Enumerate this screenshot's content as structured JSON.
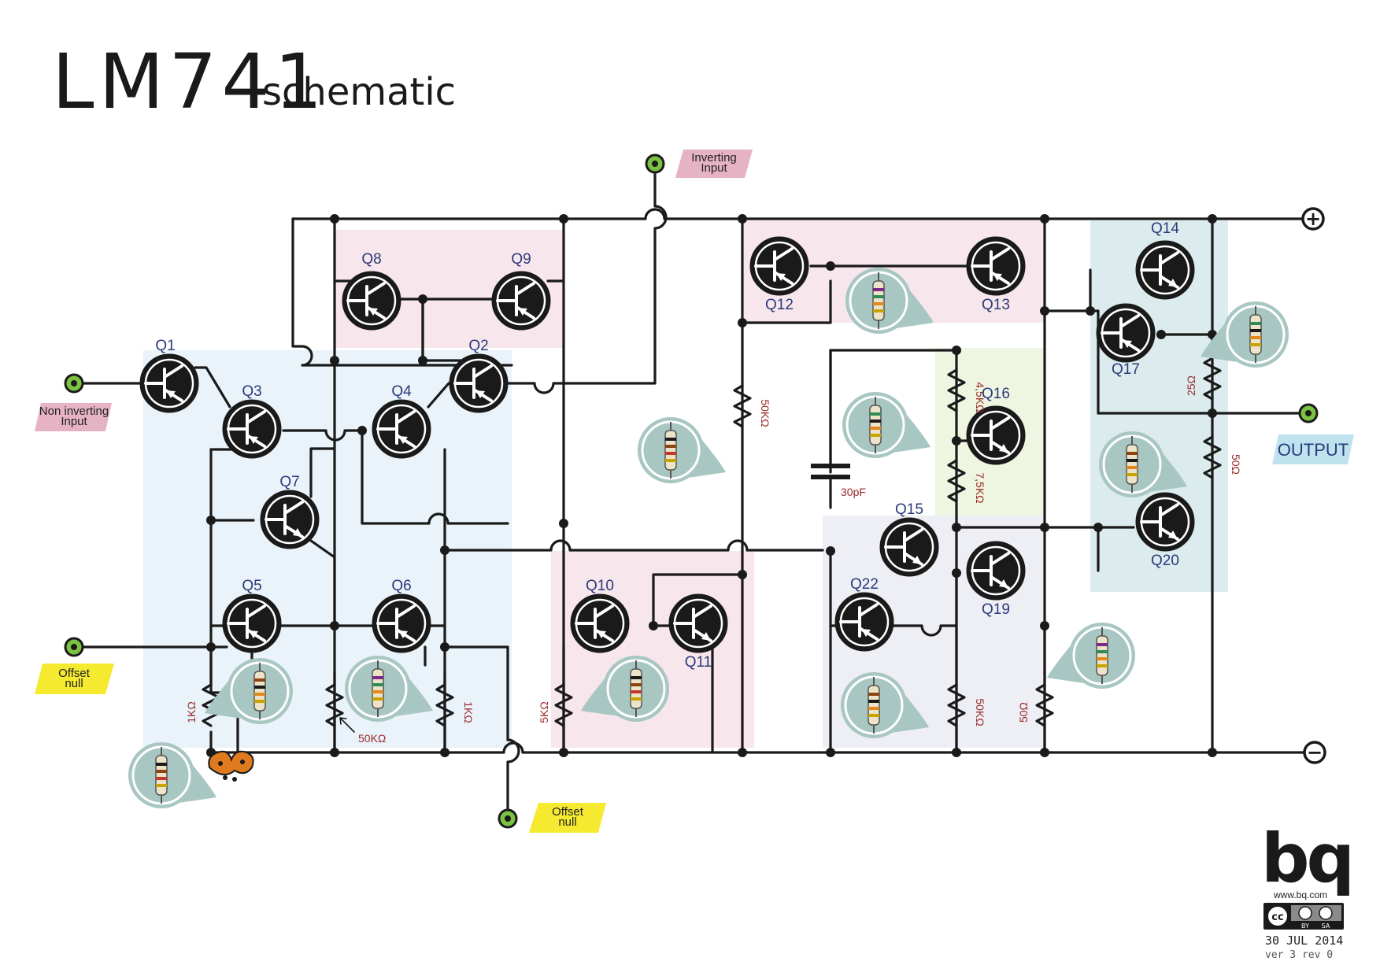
{
  "title": {
    "main": "LM741",
    "sub": "schematic"
  },
  "colors": {
    "wire": "#1a1a1a",
    "zone_pink": "#f7e6ec",
    "zone_blue": "#e9f3f9",
    "zone_green": "#eef5e0",
    "zone_lilac": "#eeeef5",
    "zone_teal": "#dcebee",
    "badge_fill": "#a9c7c2",
    "label_pink": "#e6b3c4",
    "label_yellow": "#f5ea30",
    "label_blue": "#bfe3ee",
    "io_green": "#7cc242"
  },
  "io": {
    "inverting_input": "Inverting\nInput",
    "non_inverting_input": "Non inverting\nInput",
    "offset_null_left": "Offset\nnull",
    "offset_null_bottom": "Offset\nnull",
    "output": "OUTPUT",
    "vplus": "+",
    "vminus": "−"
  },
  "transistors": [
    "Q1",
    "Q2",
    "Q3",
    "Q4",
    "Q5",
    "Q6",
    "Q7",
    "Q8",
    "Q9",
    "Q10",
    "Q11",
    "Q12",
    "Q13",
    "Q14",
    "Q15",
    "Q16",
    "Q17",
    "Q19",
    "Q20",
    "Q22"
  ],
  "components": {
    "r_1k_left": "1KΩ",
    "r_50k_pot": "50KΩ",
    "r_1k_right": "1KΩ",
    "r_5k": "5KΩ",
    "r_50k_mid": "50KΩ",
    "r_45k": "4,5KΩ",
    "r_75k": "7,5KΩ",
    "r_50k_q22": "50KΩ",
    "r_50_q19": "50Ω",
    "r_25": "25Ω",
    "r_50_out": "50Ω",
    "c_30p": "30pF"
  },
  "footer": {
    "brand": "bq",
    "url": "www.bq.com",
    "cc": "cc",
    "by": "BY",
    "sa": "SA",
    "date": "30 JUL 2014",
    "version": "ver 3 rev 0"
  }
}
